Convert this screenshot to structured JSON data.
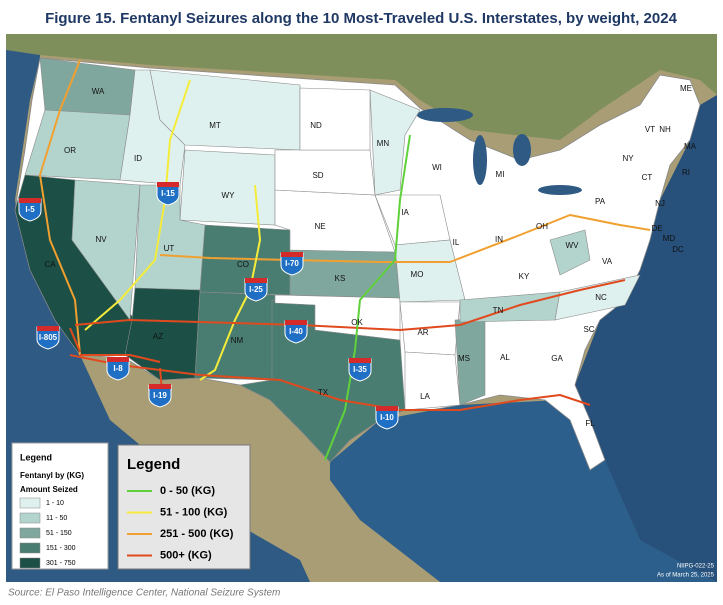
{
  "title": "Figure 15. Fentanyl Seizures along the 10 Most-Traveled U.S. Interstates, by weight, 2024",
  "map": {
    "states": [
      {
        "label": "WA",
        "fill": "#7fa79d"
      },
      {
        "label": "OR",
        "fill": "#b3d4cd"
      },
      {
        "label": "CA",
        "fill": "#1c4f45"
      },
      {
        "label": "NV",
        "fill": "#b3d4cd"
      },
      {
        "label": "ID",
        "fill": "#dff1ee"
      },
      {
        "label": "MT",
        "fill": "#dff1ee"
      },
      {
        "label": "WY",
        "fill": "#dff1ee"
      },
      {
        "label": "UT",
        "fill": "#b3d4cd"
      },
      {
        "label": "AZ",
        "fill": "#1c4f45"
      },
      {
        "label": "CO",
        "fill": "#4a7d71"
      },
      {
        "label": "NM",
        "fill": "#4a7d71"
      },
      {
        "label": "TX",
        "fill": "#4a7d71"
      },
      {
        "label": "OK",
        "fill": "#ffffff"
      },
      {
        "label": "KS",
        "fill": "#7fa79d"
      },
      {
        "label": "NE",
        "fill": "#ffffff"
      },
      {
        "label": "SD",
        "fill": "#ffffff"
      },
      {
        "label": "ND",
        "fill": "#ffffff"
      },
      {
        "label": "MN",
        "fill": "#dff1ee"
      },
      {
        "label": "IA",
        "fill": "#ffffff"
      },
      {
        "label": "MO",
        "fill": "#dff1ee"
      },
      {
        "label": "AR",
        "fill": "#ffffff"
      },
      {
        "label": "LA",
        "fill": "#ffffff"
      },
      {
        "label": "MS",
        "fill": "#7fa79d"
      },
      {
        "label": "TN",
        "fill": "#b3d4cd"
      },
      {
        "label": "WV",
        "fill": "#b3d4cd"
      },
      {
        "label": "NC",
        "fill": "#dff1ee"
      },
      {
        "label": "WI"
      },
      {
        "label": "MI"
      },
      {
        "label": "IL"
      },
      {
        "label": "IN"
      },
      {
        "label": "OH"
      },
      {
        "label": "KY"
      },
      {
        "label": "AL"
      },
      {
        "label": "GA"
      },
      {
        "label": "FL"
      },
      {
        "label": "SC"
      },
      {
        "label": "VA"
      },
      {
        "label": "PA"
      },
      {
        "label": "NY"
      },
      {
        "label": "VT"
      },
      {
        "label": "NH"
      },
      {
        "label": "ME"
      },
      {
        "label": "MA"
      },
      {
        "label": "RI"
      },
      {
        "label": "CT"
      },
      {
        "label": "NJ"
      },
      {
        "label": "DE"
      },
      {
        "label": "MD"
      },
      {
        "label": "DC"
      }
    ],
    "routes": [
      {
        "label": "I-5",
        "color": "#f0a030"
      },
      {
        "label": "I-15",
        "color": "#f5ec3a"
      },
      {
        "label": "I-70",
        "color": "#f0a030"
      },
      {
        "label": "I-25",
        "color": "#f5ec3a"
      },
      {
        "label": "I-805",
        "color": "#e04a1f"
      },
      {
        "label": "I-8",
        "color": "#e04a1f"
      },
      {
        "label": "I-40",
        "color": "#e04a1f"
      },
      {
        "label": "I-35",
        "color": "#5fd13a"
      },
      {
        "label": "I-19",
        "color": "#e04a1f"
      },
      {
        "label": "I-10",
        "color": "#e04a1f"
      }
    ]
  },
  "legend_fill": {
    "title": "Legend",
    "subtitle": "Fentanyl by (KG)",
    "heading": "Amount Seized",
    "items": [
      {
        "label": "1 - 10",
        "color": "#dff1ee"
      },
      {
        "label": "11 - 50",
        "color": "#b3d4cd"
      },
      {
        "label": "51 - 150",
        "color": "#7fa79d"
      },
      {
        "label": "151 - 300",
        "color": "#4a7d71"
      },
      {
        "label": "301 - 750",
        "color": "#1c4f45"
      }
    ]
  },
  "legend_routes": {
    "title": "Legend",
    "items": [
      {
        "label": "0 - 50 (KG)",
        "color": "#5fd13a"
      },
      {
        "label": "51 - 100 (KG)",
        "color": "#f5ec3a"
      },
      {
        "label": "251 - 500 (KG)",
        "color": "#f0a030"
      },
      {
        "label": "500+ (KG)",
        "color": "#e04a1f"
      }
    ]
  },
  "credit": [
    "NIIPG-022-25",
    "As of March 25, 2025"
  ],
  "source": "Source: El Paso Intelligence Center, National Seizure System"
}
